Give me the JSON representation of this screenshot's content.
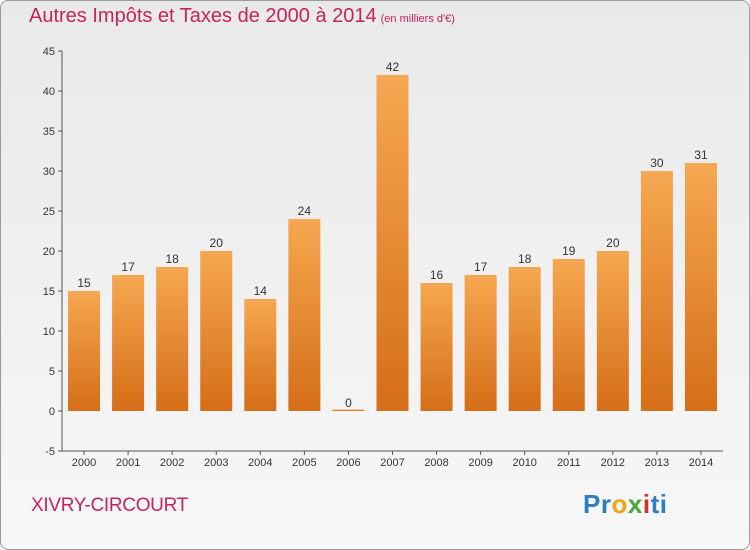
{
  "title": "Autres Impôts et Taxes de 2000 à 2014",
  "subtitle": "(en milliers d'€)",
  "town": "XIVRY-CIRCOURT",
  "logo": [
    "Pr",
    "o",
    "x",
    "i",
    "ti"
  ],
  "colors": {
    "bar_light": "#f6a751",
    "bar_dark": "#d56e18",
    "title": "#c8245c"
  },
  "chart_data": {
    "type": "bar",
    "categories": [
      "2000",
      "2001",
      "2002",
      "2003",
      "2004",
      "2005",
      "2006",
      "2007",
      "2008",
      "2009",
      "2010",
      "2011",
      "2012",
      "2013",
      "2014"
    ],
    "values": [
      15,
      17,
      18,
      20,
      14,
      24,
      0,
      42,
      16,
      17,
      18,
      19,
      20,
      30,
      31
    ],
    "ylim": [
      -5,
      45
    ],
    "yticks": [
      -5,
      0,
      5,
      10,
      15,
      20,
      25,
      30,
      35,
      40,
      45
    ],
    "grid": false,
    "xlabel": "",
    "ylabel": ""
  }
}
